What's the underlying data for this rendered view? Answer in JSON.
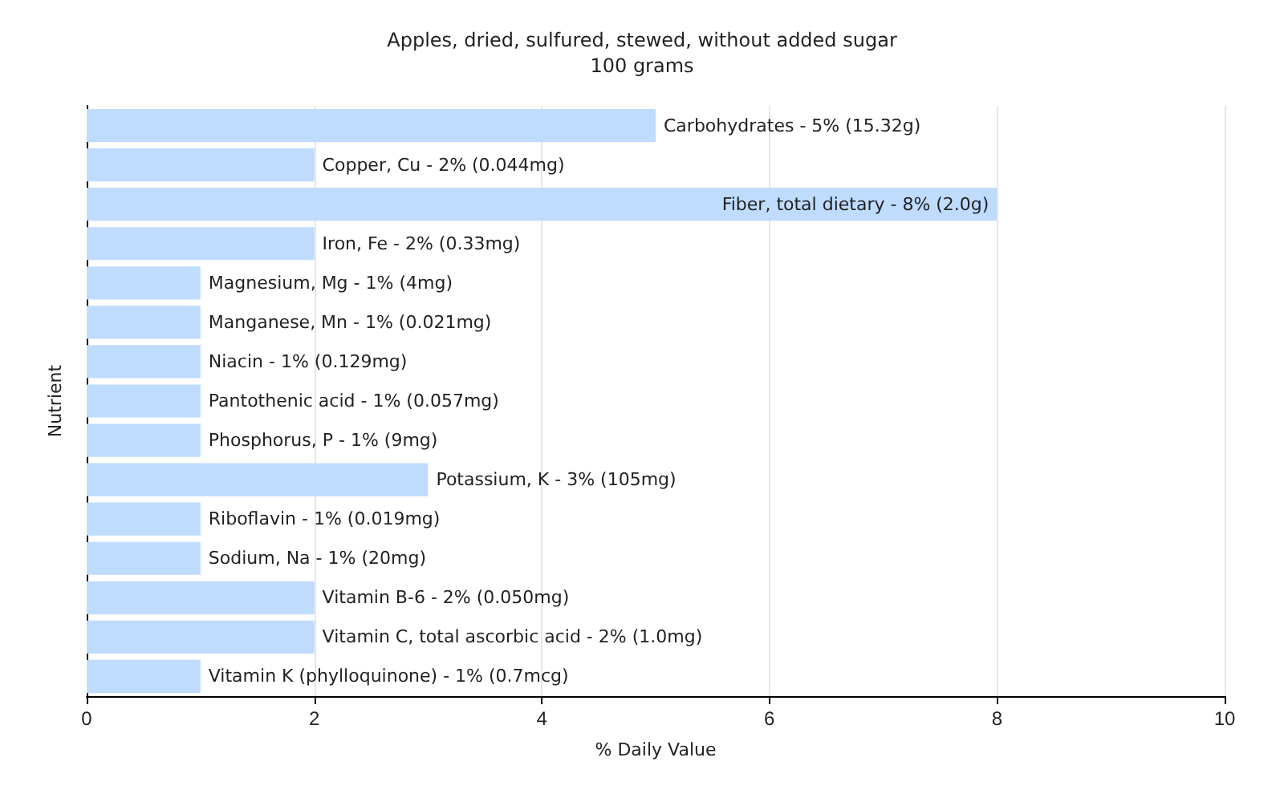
{
  "chart_data": {
    "type": "bar",
    "orientation": "horizontal",
    "title": "Apples, dried, sulfured, stewed, without added sugar",
    "subtitle": "100 grams",
    "xlabel": "% Daily Value",
    "ylabel": "Nutrient",
    "categories": [
      "Carbohydrates - 5% (15.32g)",
      "Copper, Cu - 2% (0.044mg)",
      "Fiber, total dietary - 8% (2.0g)",
      "Iron, Fe - 2% (0.33mg)",
      "Magnesium, Mg - 1% (4mg)",
      "Manganese, Mn - 1% (0.021mg)",
      "Niacin - 1% (0.129mg)",
      "Pantothenic acid - 1% (0.057mg)",
      "Phosphorus, P - 1% (9mg)",
      "Potassium, K - 3% (105mg)",
      "Riboflavin - 1% (0.019mg)",
      "Sodium, Na - 1% (20mg)",
      "Vitamin B-6 - 2% (0.050mg)",
      "Vitamin C, total ascorbic acid - 2% (1.0mg)",
      "Vitamin K (phylloquinone) - 1% (0.7mcg)"
    ],
    "values": [
      5,
      2,
      8,
      2,
      1,
      1,
      1,
      1,
      1,
      3,
      1,
      1,
      2,
      2,
      1
    ],
    "color": "#bfdcff",
    "xlim": [
      0,
      10
    ],
    "xticks": [
      0,
      2,
      4,
      6,
      8,
      10
    ],
    "grid": "x",
    "tick_labels": "x"
  }
}
